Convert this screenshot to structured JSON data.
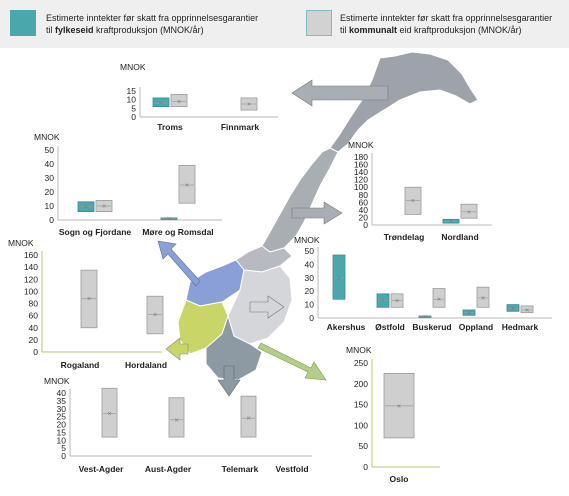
{
  "colors": {
    "fylkeseid": "#4aa8ad",
    "kommunalt": "#cfcfcf",
    "axis": "#b8b8b8",
    "text": "#222222",
    "mid": "#999999"
  },
  "legend": {
    "fylkeseid": {
      "line1": "Estimerte inntekter før skatt fra opprinnelsesgarantier",
      "pre": "til ",
      "bold": "fylkeseid",
      "post": " kraftproduksjon (MNOK/år)"
    },
    "kommunalt": {
      "line1": "Estimerte inntekter før skatt fra opprinnelsesgarantier",
      "pre": "til ",
      "bold": "kommunalt",
      "post": " eid kraftproduksjon (MNOK/år)"
    }
  },
  "chart_data": [
    {
      "type": "box",
      "ylabel": "MNOK",
      "yticks": [
        0,
        5,
        10,
        15
      ],
      "ylim": [
        0,
        15
      ],
      "categories": [
        "Troms",
        "Finnmark"
      ],
      "series": [
        {
          "group": "fylkeseid",
          "values": [
            {
              "low": 6,
              "mean": 8,
              "high": 11
            },
            null
          ]
        },
        {
          "group": "kommunalt",
          "values": [
            {
              "low": 6,
              "mean": 9,
              "high": 13
            },
            {
              "low": 4,
              "mean": 7.5,
              "high": 11
            }
          ]
        }
      ]
    },
    {
      "type": "box",
      "ylabel": "MNOK",
      "yticks": [
        0,
        10,
        20,
        30,
        40,
        50
      ],
      "ylim": [
        0,
        50
      ],
      "categories": [
        "Sogn og Fjordane",
        "Møre og Romsdal"
      ],
      "series": [
        {
          "group": "fylkeseid",
          "values": [
            {
              "low": 6,
              "mean": 9.5,
              "high": 13
            },
            {
              "low": 0.5,
              "mean": 1,
              "high": 1.5
            }
          ]
        },
        {
          "group": "kommunalt",
          "values": [
            {
              "low": 6,
              "mean": 10,
              "high": 14
            },
            {
              "low": 12,
              "mean": 25,
              "high": 39
            }
          ]
        }
      ]
    },
    {
      "type": "box",
      "ylabel": "MNOK",
      "yticks": [
        0,
        20,
        40,
        60,
        80,
        100,
        120,
        140,
        160
      ],
      "ylim": [
        0,
        160
      ],
      "categories": [
        "Rogaland",
        "Hordaland"
      ],
      "series": [
        {
          "group": "fylkeseid",
          "values": [
            null,
            null
          ]
        },
        {
          "group": "kommunalt",
          "values": [
            {
              "low": 40,
              "mean": 88,
              "high": 135
            },
            {
              "low": 30,
              "mean": 62,
              "high": 92
            }
          ]
        }
      ]
    },
    {
      "type": "box",
      "ylabel": "MNOK",
      "yticks": [
        0,
        20,
        40,
        60,
        80,
        100,
        120,
        140,
        160,
        180
      ],
      "ylim": [
        0,
        180
      ],
      "categories": [
        "Trøndelag",
        "Nordland"
      ],
      "series": [
        {
          "group": "fylkeseid",
          "values": [
            null,
            {
              "low": 5,
              "mean": 10,
              "high": 15
            }
          ]
        },
        {
          "group": "kommunalt",
          "values": [
            {
              "low": 28,
              "mean": 65,
              "high": 100
            },
            {
              "low": 18,
              "mean": 35,
              "high": 55
            }
          ]
        }
      ]
    },
    {
      "type": "box",
      "ylabel": "MNOK",
      "yticks": [
        0,
        10,
        20,
        30,
        40,
        50
      ],
      "ylim": [
        0,
        50
      ],
      "categories": [
        "Akershus",
        "Østfold",
        "Buskerud",
        "Oppland",
        "Hedmark"
      ],
      "series": [
        {
          "group": "fylkeseid",
          "values": [
            {
              "low": 14,
              "mean": 30,
              "high": 47
            },
            {
              "low": 8,
              "mean": 13,
              "high": 18
            },
            {
              "low": 0.5,
              "mean": 1,
              "high": 1.5
            },
            {
              "low": 2,
              "mean": 4,
              "high": 6
            },
            {
              "low": 5,
              "mean": 7,
              "high": 10
            }
          ]
        },
        {
          "group": "kommunalt",
          "values": [
            null,
            {
              "low": 8,
              "mean": 13,
              "high": 18
            },
            {
              "low": 8,
              "mean": 14,
              "high": 22
            },
            {
              "low": 8,
              "mean": 15,
              "high": 23
            },
            {
              "low": 4,
              "mean": 6,
              "high": 9
            }
          ]
        }
      ]
    },
    {
      "type": "box",
      "ylabel": "MNOK",
      "yticks": [
        0,
        5,
        10,
        15,
        20,
        25,
        30,
        35,
        40
      ],
      "ylim": [
        0,
        40
      ],
      "categories": [
        "Vest-Agder",
        "Aust-Agder",
        "Telemark",
        "Vestfold"
      ],
      "series": [
        {
          "group": "fylkeseid",
          "values": [
            null,
            null,
            null,
            null
          ]
        },
        {
          "group": "kommunalt",
          "values": [
            {
              "low": 12,
              "mean": 27,
              "high": 43
            },
            {
              "low": 12,
              "mean": 23,
              "high": 37
            },
            {
              "low": 12,
              "mean": 24,
              "high": 38
            },
            null
          ]
        }
      ]
    },
    {
      "type": "box",
      "ylabel": "MNOK",
      "yticks": [
        0,
        50,
        100,
        150,
        200,
        250
      ],
      "ylim": [
        0,
        250
      ],
      "categories": [
        "Oslo"
      ],
      "series": [
        {
          "group": "fylkeseid",
          "values": [
            null
          ]
        },
        {
          "group": "kommunalt",
          "values": [
            {
              "low": 70,
              "mean": 147,
              "high": 225
            }
          ]
        }
      ]
    }
  ]
}
